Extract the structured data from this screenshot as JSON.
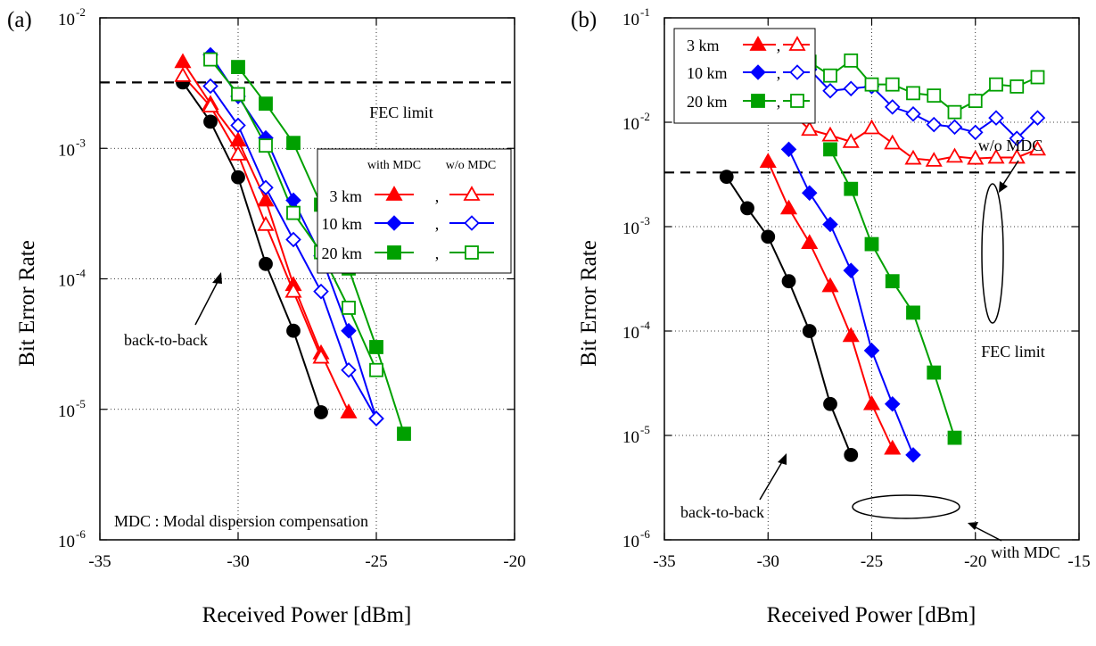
{
  "chart_data": [
    {
      "type": "line",
      "panel_label": "(a)",
      "xlabel": "Received Power [dBm]",
      "ylabel": "Bit Error Rate",
      "xlim": [
        -35,
        -20
      ],
      "ylim": [
        1e-06,
        0.01
      ],
      "yscale": "log",
      "x_ticks": [
        "-35",
        "-30",
        "-25",
        "-20"
      ],
      "y_ticks": [
        {
          "base": "10",
          "exp": "-6"
        },
        {
          "base": "10",
          "exp": "-5"
        },
        {
          "base": "10",
          "exp": "-4"
        },
        {
          "base": "10",
          "exp": "-3"
        },
        {
          "base": "10",
          "exp": "-2"
        }
      ],
      "grid": true,
      "fec_limit": {
        "value": 0.0032,
        "label": "FEC limit"
      },
      "legend": {
        "position": "right",
        "header_with": "with MDC",
        "header_without": "w/o MDC",
        "rows": [
          {
            "label": "3 km",
            "sep": ","
          },
          {
            "label": "10 km",
            "sep": ","
          },
          {
            "label": "20 km",
            "sep": ","
          }
        ]
      },
      "annotations": {
        "back_to_back": "back-to-back",
        "note": "MDC : Modal dispersion compensation"
      },
      "series": [
        {
          "key": "b2b",
          "color": "#000000",
          "marker": "circle",
          "filled": true,
          "x": [
            -32,
            -31,
            -30,
            -29,
            -28,
            -27
          ],
          "y": [
            0.0032,
            0.0016,
            0.0006,
            0.00013,
            4e-05,
            9.5e-06
          ]
        },
        {
          "key": "3km_with",
          "color": "#ff0000",
          "marker": "triangle",
          "filled": true,
          "x": [
            -32,
            -31,
            -30,
            -29,
            -28,
            -27,
            -26
          ],
          "y": [
            0.0046,
            0.0022,
            0.00115,
            0.0004,
            9e-05,
            2.7e-05,
            9.5e-06
          ]
        },
        {
          "key": "3km_wo",
          "color": "#ff0000",
          "marker": "triangle",
          "filled": false,
          "x": [
            -32,
            -31,
            -30,
            -29,
            -28,
            -27
          ],
          "y": [
            0.0036,
            0.0021,
            0.0009,
            0.00026,
            8e-05,
            2.5e-05
          ]
        },
        {
          "key": "10km_with",
          "color": "#0000ff",
          "marker": "diamond",
          "filled": true,
          "x": [
            -31,
            -30,
            -29,
            -28,
            -27,
            -26,
            -25
          ],
          "y": [
            0.0052,
            0.0025,
            0.0012,
            0.0004,
            0.00015,
            4e-05,
            8.5e-06
          ]
        },
        {
          "key": "10km_wo",
          "color": "#0000ff",
          "marker": "diamond",
          "filled": false,
          "x": [
            -31,
            -30,
            -29,
            -28,
            -27,
            -26,
            -25
          ],
          "y": [
            0.003,
            0.0015,
            0.0005,
            0.0002,
            8e-05,
            2e-05,
            8.5e-06
          ]
        },
        {
          "key": "20km_with",
          "color": "#00a000",
          "marker": "square",
          "filled": true,
          "x": [
            -30,
            -29,
            -28,
            -27,
            -26,
            -25,
            -24
          ],
          "y": [
            0.0042,
            0.0022,
            0.0011,
            0.00037,
            0.00012,
            3e-05,
            6.5e-06
          ]
        },
        {
          "key": "20km_wo",
          "color": "#00a000",
          "marker": "square",
          "filled": false,
          "x": [
            -31,
            -30,
            -29,
            -28,
            -27,
            -26,
            -25
          ],
          "y": [
            0.0048,
            0.0026,
            0.00105,
            0.00032,
            0.00016,
            6e-05,
            2e-05
          ]
        }
      ]
    },
    {
      "type": "line",
      "panel_label": "(b)",
      "xlabel": "Received Power [dBm]",
      "ylabel": "Bit Error Rate",
      "xlim": [
        -35,
        -15
      ],
      "ylim": [
        1e-06,
        0.1
      ],
      "yscale": "log",
      "x_ticks": [
        "-35",
        "-30",
        "-25",
        "-20",
        "-15"
      ],
      "y_ticks": [
        {
          "base": "10",
          "exp": "-6"
        },
        {
          "base": "10",
          "exp": "-5"
        },
        {
          "base": "10",
          "exp": "-4"
        },
        {
          "base": "10",
          "exp": "-3"
        },
        {
          "base": "10",
          "exp": "-2"
        },
        {
          "base": "10",
          "exp": "-1"
        }
      ],
      "grid": true,
      "fec_limit": {
        "value": 0.0033,
        "label": "FEC limit"
      },
      "legend": {
        "position": "top-left",
        "rows": [
          {
            "label": "3 km",
            "sep": ","
          },
          {
            "label": "10 km",
            "sep": ","
          },
          {
            "label": "20 km",
            "sep": ","
          }
        ]
      },
      "annotations": {
        "back_to_back": "back-to-back",
        "wo_mdc": "w/o MDC",
        "with_mdc": "with MDC"
      },
      "series": [
        {
          "key": "b2b",
          "color": "#000000",
          "marker": "circle",
          "filled": true,
          "x": [
            -32,
            -31,
            -30,
            -29,
            -28,
            -27,
            -26
          ],
          "y": [
            0.003,
            0.0015,
            0.0008,
            0.0003,
            0.0001,
            2e-05,
            6.5e-06
          ]
        },
        {
          "key": "3km_with",
          "color": "#ff0000",
          "marker": "triangle",
          "filled": true,
          "x": [
            -30,
            -29,
            -28,
            -27,
            -26,
            -25,
            -24
          ],
          "y": [
            0.0042,
            0.0015,
            0.0007,
            0.00027,
            9e-05,
            2e-05,
            7.5e-06
          ]
        },
        {
          "key": "3km_wo",
          "color": "#ff0000",
          "marker": "triangle",
          "filled": false,
          "x": [
            -30,
            -29,
            -28,
            -27,
            -26,
            -25,
            -24,
            -23,
            -22,
            -21,
            -20,
            -19,
            -18,
            -17
          ],
          "y": [
            0.015,
            0.013,
            0.0085,
            0.0075,
            0.0065,
            0.0088,
            0.0063,
            0.0045,
            0.0043,
            0.0047,
            0.0045,
            0.0046,
            0.0046,
            0.0055
          ]
        },
        {
          "key": "10km_with",
          "color": "#0000ff",
          "marker": "diamond",
          "filled": true,
          "x": [
            -29,
            -28,
            -27,
            -26,
            -25,
            -24,
            -23
          ],
          "y": [
            0.0055,
            0.0021,
            0.00105,
            0.00038,
            6.5e-05,
            2e-05,
            6.5e-06
          ]
        },
        {
          "key": "10km_wo",
          "color": "#0000ff",
          "marker": "diamond",
          "filled": false,
          "x": [
            -30,
            -29,
            -28,
            -27,
            -26,
            -25,
            -24,
            -23,
            -22,
            -21,
            -20,
            -19,
            -18,
            -17
          ],
          "y": [
            0.05,
            0.043,
            0.032,
            0.02,
            0.021,
            0.022,
            0.014,
            0.012,
            0.0095,
            0.009,
            0.008,
            0.011,
            0.007,
            0.011
          ]
        },
        {
          "key": "20km_with",
          "color": "#00a000",
          "marker": "square",
          "filled": true,
          "x": [
            -27,
            -26,
            -25,
            -24,
            -23,
            -22,
            -21
          ],
          "y": [
            0.0055,
            0.0023,
            0.00068,
            0.0003,
            0.00015,
            4e-05,
            9.5e-06
          ]
        },
        {
          "key": "20km_wo",
          "color": "#00a000",
          "marker": "square",
          "filled": false,
          "x": [
            -30,
            -29,
            -28,
            -27,
            -26,
            -25,
            -24,
            -23,
            -22,
            -21,
            -20,
            -19,
            -18,
            -17
          ],
          "y": [
            0.045,
            0.056,
            0.038,
            0.028,
            0.039,
            0.023,
            0.023,
            0.019,
            0.018,
            0.0125,
            0.016,
            0.023,
            0.022,
            0.027
          ]
        }
      ]
    }
  ]
}
